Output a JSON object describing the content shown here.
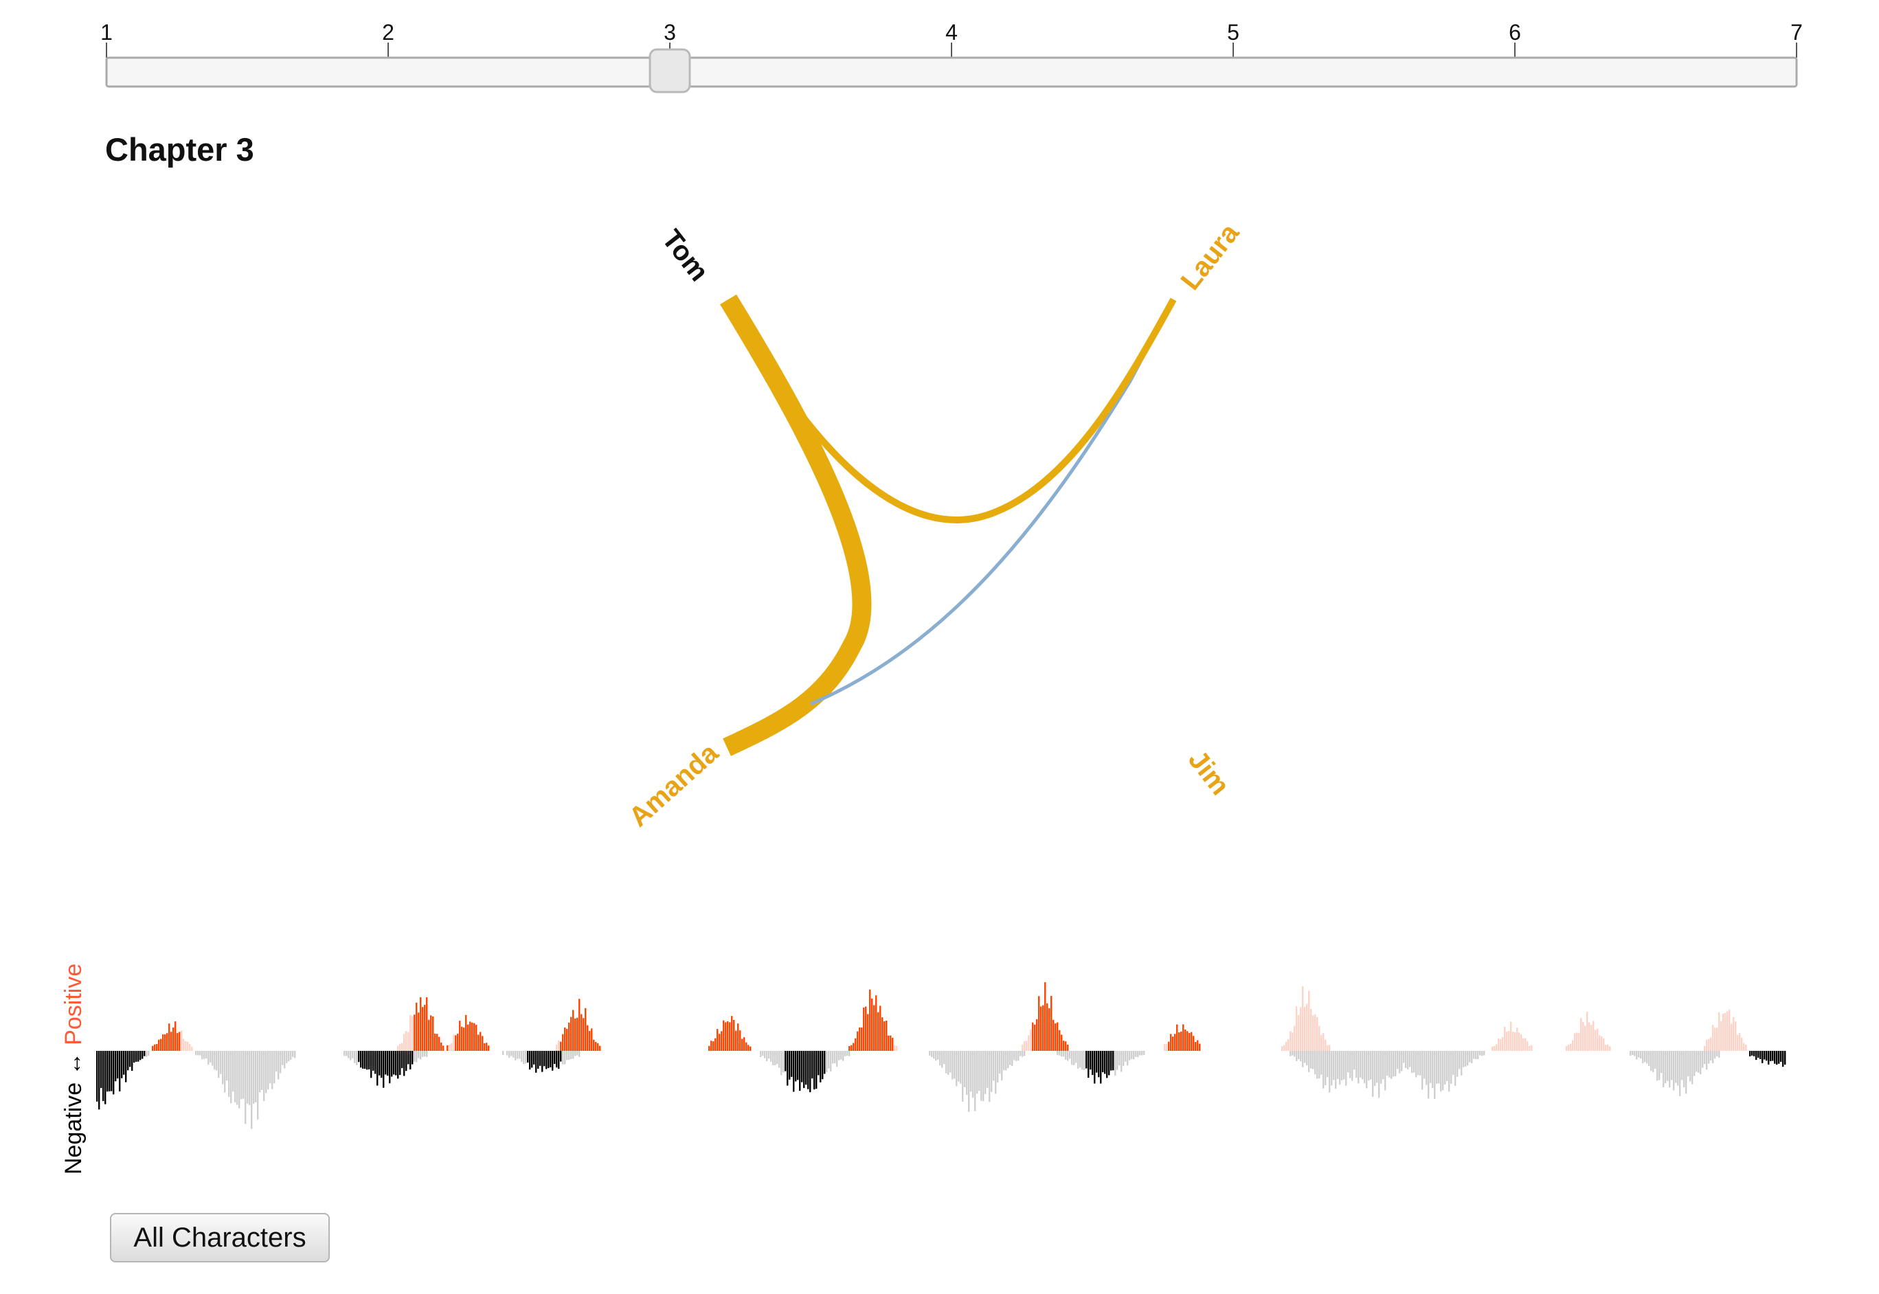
{
  "slider": {
    "ticks": [
      "1",
      "2",
      "3",
      "4",
      "5",
      "6",
      "7"
    ],
    "min": 1,
    "max": 7,
    "value": 3
  },
  "chapter_title": "Chapter 3",
  "network": {
    "characters": [
      {
        "id": "tom",
        "name": "Tom",
        "color": "#111111"
      },
      {
        "id": "laura",
        "name": "Laura",
        "color": "#e8a317"
      },
      {
        "id": "amanda",
        "name": "Amanda",
        "color": "#e8a317"
      },
      {
        "id": "jim",
        "name": "Jim",
        "color": "#e8a317"
      }
    ],
    "links": [
      {
        "source": "tom",
        "target": "amanda",
        "weight": "heavy",
        "color": "#e6ac0e"
      },
      {
        "source": "tom",
        "target": "laura",
        "weight": "light",
        "color": "#e6ac0e"
      },
      {
        "source": "amanda",
        "target": "laura",
        "weight": "thin",
        "color": "#8aaed0"
      }
    ]
  },
  "sentiment": {
    "axis_negative": "Negative",
    "axis_arrow": "↔",
    "axis_positive": "Positive",
    "colors": {
      "positive_current": "#ff4500",
      "positive_other": "#fdd3c8",
      "negative_current": "#000000",
      "negative_other": "#cfcfcf"
    }
  },
  "buttons": {
    "all_characters": "All Characters"
  }
}
